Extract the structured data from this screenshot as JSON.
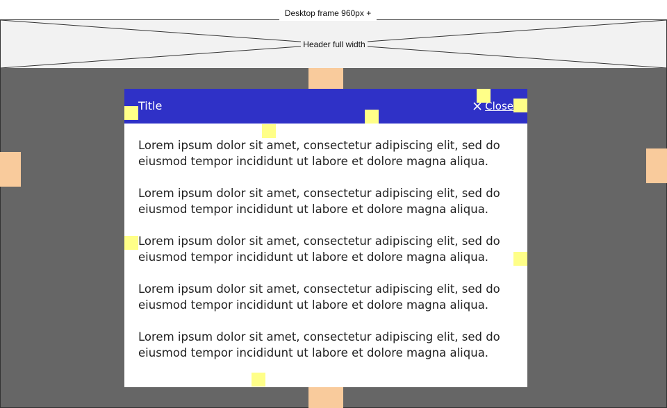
{
  "frame": {
    "label": "Desktop frame 960px +"
  },
  "header": {
    "label": "Header full width"
  },
  "modal": {
    "title": "Title",
    "close_label": "Close",
    "close_icon": "close-icon",
    "paragraphs": [
      "Lorem ipsum dolor sit amet, consectetur adipiscing elit, sed do eiusmod tempor incididunt ut labore et dolore magna aliqua.",
      "Lorem ipsum dolor sit amet, consectetur adipiscing elit, sed do eiusmod tempor incididunt ut labore et dolore magna aliqua.",
      "Lorem ipsum dolor sit amet, consectetur adipiscing elit, sed do eiusmod tempor incididunt ut labore et dolore magna aliqua.",
      "Lorem ipsum dolor sit amet, consectetur adipiscing elit, sed do eiusmod tempor incididunt ut labore et dolore magna aliqua.",
      "Lorem ipsum dolor sit amet, consectetur adipiscing elit, sed do eiusmod tempor incididunt ut labore et dolore magna aliqua."
    ]
  },
  "colors": {
    "header_bg": "#f2f2f2",
    "overlay": "#666666",
    "modal_header": "#2f31c7",
    "spacing_marker_outer": "#f9cb9c",
    "spacing_marker_inner": "#ffff88"
  }
}
